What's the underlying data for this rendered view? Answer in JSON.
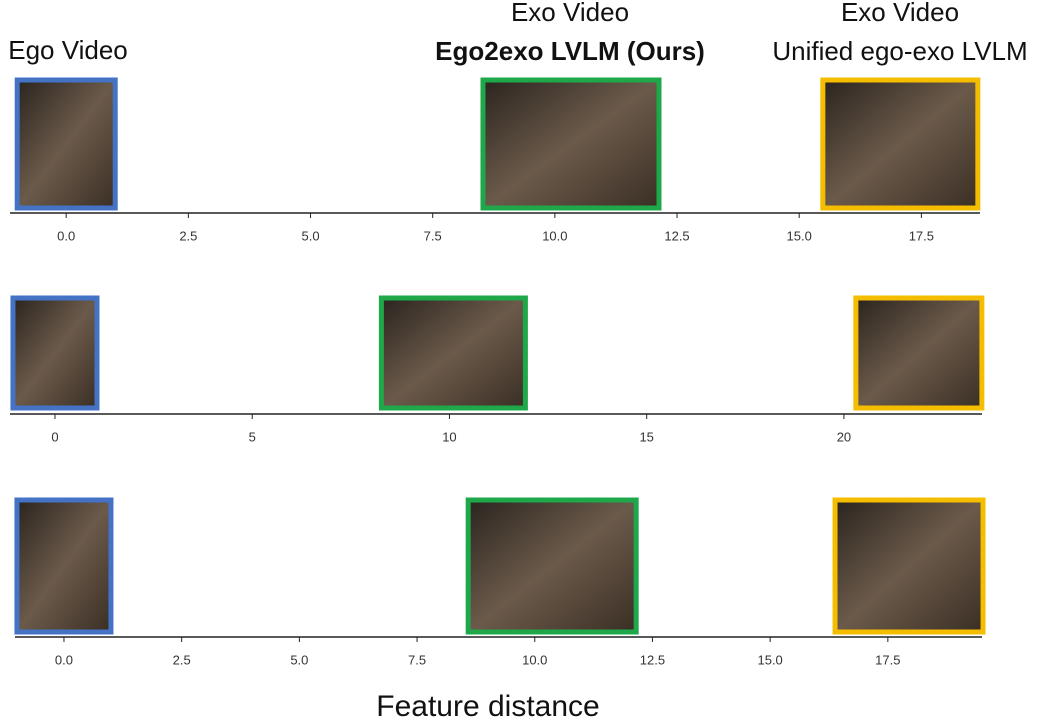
{
  "column_titles": [
    {
      "lines": [
        "Ego Video"
      ]
    },
    {
      "lines": [
        "Exo Video",
        "Ego2exo LVLM (Ours)"
      ]
    },
    {
      "lines": [
        "Exo Video",
        "Unified ego-exo LVLM"
      ]
    }
  ],
  "xlabel": "Feature distance",
  "chart_data": [
    {
      "type": "scatter",
      "values": [
        0,
        10.33,
        17.07
      ],
      "colors": [
        "#4472c4",
        "#1fa84a",
        "#f5bd00"
      ],
      "xlim": [
        -1.15,
        18.7
      ],
      "xticks": [
        {
          "value": 0,
          "label": "0.0"
        },
        2.5,
        {
          "value": 5,
          "label": "5.0"
        },
        7.5,
        {
          "value": 10,
          "label": "10.0"
        },
        12.5,
        {
          "value": 15,
          "label": "15.0"
        },
        17.5
      ]
    },
    {
      "type": "scatter",
      "values": [
        0,
        10.1,
        21.9
      ],
      "colors": [
        "#4472c4",
        "#1fa84a",
        "#f5bd00"
      ],
      "xlim": [
        -1.14,
        23.5
      ],
      "xticks": [
        0,
        5,
        10,
        15,
        20
      ]
    },
    {
      "type": "scatter",
      "values": [
        0,
        10.37,
        17.95
      ],
      "colors": [
        "#4472c4",
        "#1fa84a",
        "#f5bd00"
      ],
      "xlim": [
        -1.04,
        19.5
      ],
      "xticks": [
        {
          "value": 0,
          "label": "0.0"
        },
        2.5,
        {
          "value": 5,
          "label": "5.0"
        },
        7.5,
        {
          "value": 10,
          "label": "10.0"
        },
        12.5,
        {
          "value": 15,
          "label": "15.0"
        },
        17.5
      ]
    }
  ]
}
